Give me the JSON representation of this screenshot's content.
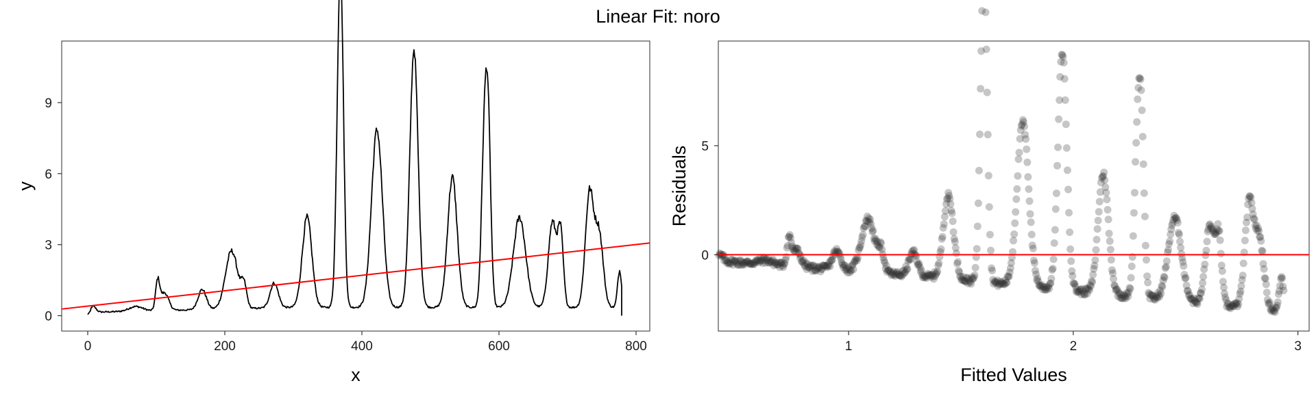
{
  "figure": {
    "title": "Linear Fit: noro"
  },
  "chart_data": [
    {
      "type": "line",
      "panel": "left",
      "title": "",
      "xlabel": "x",
      "ylabel": "y",
      "xlim": [
        -38,
        820
      ],
      "ylim": [
        -0.65,
        11.6
      ],
      "xticks": [
        0,
        200,
        400,
        600,
        800
      ],
      "yticks": [
        0,
        3,
        6,
        9
      ],
      "grid": false,
      "series_color": "#000000",
      "fit_color": "#ff0000",
      "fit_line": {
        "x": [
          -38,
          820
        ],
        "y": [
          0.28,
          3.07
        ]
      },
      "peaks": [
        {
          "x": 8,
          "y": 0.25,
          "w": 4
        },
        {
          "x": 70,
          "y": 0.2,
          "w": 10
        },
        {
          "x": 102,
          "y": 1.2,
          "w": 3
        },
        {
          "x": 112,
          "y": 0.75,
          "w": 6
        },
        {
          "x": 167,
          "y": 0.85,
          "w": 6
        },
        {
          "x": 210,
          "y": 2.45,
          "w": 9
        },
        {
          "x": 228,
          "y": 0.9,
          "w": 4
        },
        {
          "x": 272,
          "y": 1.05,
          "w": 6
        },
        {
          "x": 320,
          "y": 3.8,
          "w": 7
        },
        {
          "x": 366,
          "y": 6.3,
          "w": 4
        },
        {
          "x": 370,
          "y": 9.9,
          "w": 4
        },
        {
          "x": 422,
          "y": 7.5,
          "w": 8
        },
        {
          "x": 476,
          "y": 10.9,
          "w": 6
        },
        {
          "x": 532,
          "y": 5.5,
          "w": 7
        },
        {
          "x": 578,
          "y": 5.7,
          "w": 4
        },
        {
          "x": 584,
          "y": 7.6,
          "w": 4
        },
        {
          "x": 630,
          "y": 3.8,
          "w": 9
        },
        {
          "x": 678,
          "y": 3.6,
          "w": 6
        },
        {
          "x": 690,
          "y": 3.0,
          "w": 4
        },
        {
          "x": 732,
          "y": 4.8,
          "w": 6
        },
        {
          "x": 746,
          "y": 3.1,
          "w": 6
        },
        {
          "x": 776,
          "y": 1.55,
          "w": 3
        }
      ],
      "baseline": 0.35,
      "x_range": [
        0,
        779
      ]
    },
    {
      "type": "scatter",
      "panel": "right",
      "title": "",
      "xlabel": "Fitted Values",
      "ylabel": "Residuals",
      "xlim": [
        0.42,
        3.05
      ],
      "ylim": [
        -3.5,
        9.8
      ],
      "xticks": [
        1,
        2,
        3
      ],
      "yticks": [
        0,
        5
      ],
      "grid": false,
      "point_color": "#333333",
      "point_opacity": 0.28,
      "zero_line": {
        "y": 0,
        "color": "#ff0000"
      }
    }
  ]
}
